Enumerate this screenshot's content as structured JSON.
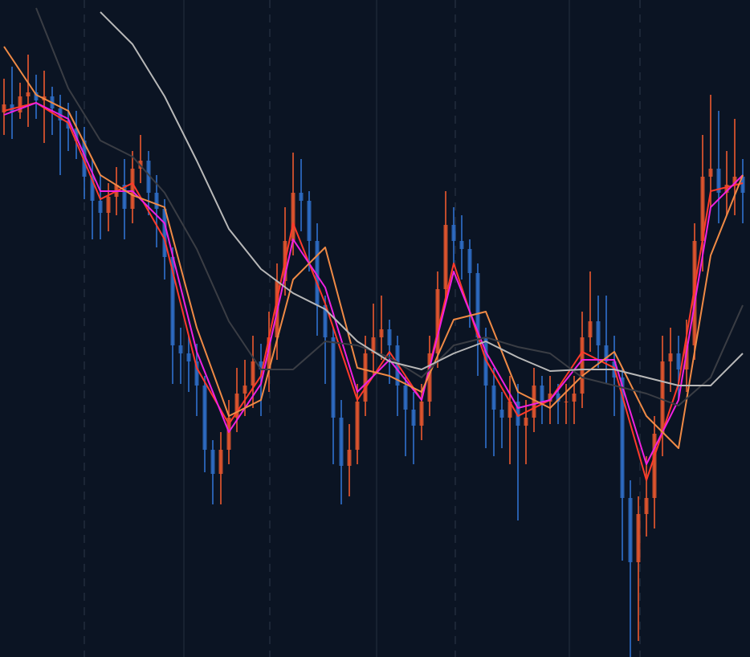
{
  "chart_data": {
    "type": "candlestick",
    "x": [
      1,
      2,
      3,
      4,
      5,
      6,
      7,
      8,
      9,
      10,
      11,
      12,
      13,
      14,
      15,
      16,
      17,
      18,
      19,
      20,
      21,
      22,
      23,
      24,
      25,
      26,
      27,
      28,
      29,
      30,
      31,
      32,
      33,
      34,
      35,
      36,
      37,
      38,
      39,
      40,
      41,
      42,
      43,
      44,
      45,
      46,
      47,
      48,
      49,
      50,
      51,
      52,
      53,
      54,
      55,
      56,
      57,
      58,
      59,
      60,
      61,
      62,
      63,
      64,
      65,
      66,
      67,
      68,
      69,
      70,
      71,
      72,
      73,
      74,
      75,
      76,
      77,
      78,
      79,
      80,
      81,
      82,
      83,
      84,
      85,
      86,
      87,
      88,
      89,
      90,
      91,
      92,
      93
    ],
    "open": [
      678,
      688,
      678,
      698,
      703,
      693,
      698,
      683,
      668,
      658,
      643,
      598,
      568,
      553,
      573,
      588,
      558,
      608,
      618,
      578,
      558,
      498,
      388,
      378,
      368,
      338,
      258,
      228,
      258,
      298,
      328,
      338,
      368,
      358,
      398,
      468,
      518,
      578,
      568,
      518,
      438,
      398,
      298,
      238,
      258,
      318,
      378,
      398,
      408,
      388,
      338,
      308,
      288,
      318,
      378,
      458,
      538,
      518,
      508,
      478,
      398,
      338,
      308,
      298,
      318,
      288,
      298,
      338,
      318,
      328,
      318,
      318,
      328,
      398,
      418,
      388,
      368,
      348,
      198,
      118,
      178,
      198,
      278,
      368,
      378,
      358,
      388,
      518,
      598,
      608,
      578,
      588,
      598
    ],
    "high": [
      720,
      735,
      715,
      750,
      725,
      730,
      710,
      700,
      690,
      680,
      660,
      620,
      600,
      590,
      610,
      620,
      630,
      650,
      630,
      600,
      570,
      510,
      410,
      400,
      390,
      350,
      270,
      280,
      320,
      360,
      370,
      400,
      390,
      430,
      490,
      560,
      628,
      620,
      580,
      540,
      450,
      410,
      320,
      290,
      340,
      400,
      440,
      450,
      420,
      400,
      350,
      330,
      340,
      400,
      480,
      580,
      560,
      550,
      520,
      490,
      410,
      360,
      330,
      350,
      340,
      320,
      360,
      350,
      350,
      340,
      340,
      350,
      430,
      480,
      450,
      450,
      400,
      360,
      220,
      200,
      250,
      300,
      400,
      410,
      400,
      420,
      540,
      650,
      700,
      680,
      630,
      670,
      620
    ],
    "low": [
      650,
      645,
      670,
      660,
      670,
      640,
      650,
      600,
      630,
      620,
      570,
      520,
      520,
      530,
      550,
      520,
      540,
      590,
      550,
      510,
      470,
      340,
      340,
      330,
      300,
      230,
      190,
      190,
      240,
      280,
      300,
      310,
      300,
      330,
      370,
      450,
      500,
      530,
      480,
      400,
      340,
      240,
      190,
      200,
      240,
      300,
      350,
      370,
      340,
      300,
      250,
      240,
      270,
      300,
      360,
      440,
      490,
      470,
      410,
      350,
      260,
      250,
      260,
      240,
      170,
      240,
      280,
      290,
      290,
      290,
      290,
      290,
      310,
      380,
      360,
      340,
      300,
      120,
      0,
      20,
      150,
      160,
      250,
      330,
      320,
      330,
      370,
      480,
      560,
      540,
      550,
      550,
      540
    ],
    "close": [
      688,
      678,
      698,
      703,
      693,
      698,
      683,
      668,
      658,
      643,
      598,
      568,
      553,
      573,
      588,
      558,
      608,
      618,
      578,
      558,
      498,
      388,
      378,
      368,
      338,
      258,
      228,
      258,
      298,
      328,
      338,
      368,
      358,
      398,
      468,
      518,
      578,
      568,
      518,
      438,
      398,
      298,
      238,
      258,
      318,
      378,
      398,
      408,
      388,
      338,
      308,
      288,
      318,
      378,
      458,
      538,
      518,
      508,
      478,
      398,
      338,
      308,
      298,
      318,
      288,
      298,
      338,
      318,
      328,
      318,
      318,
      328,
      398,
      418,
      388,
      368,
      348,
      198,
      118,
      178,
      198,
      278,
      368,
      378,
      358,
      388,
      518,
      598,
      608,
      578,
      588,
      598,
      578
    ],
    "up_color": "#e0552e",
    "down_color": "#2e6cc4",
    "lines": [
      {
        "color": "#ff3a2a",
        "x": [
          1,
          5,
          9,
          13,
          17,
          21,
          25,
          29,
          33,
          37,
          41,
          45,
          49,
          53,
          57,
          61,
          65,
          69,
          73,
          77,
          81,
          85,
          89,
          93
        ],
        "values": [
          680,
          690,
          665,
          570,
          590,
          520,
          360,
          290,
          350,
          540,
          440,
          320,
          380,
          320,
          490,
          370,
          300,
          320,
          380,
          360,
          220,
          340,
          580,
          590
        ]
      },
      {
        "color": "#f020e0",
        "x": [
          1,
          5,
          9,
          13,
          17,
          21,
          25,
          29,
          33,
          37,
          41,
          45,
          49,
          53,
          57,
          61,
          65,
          69,
          73,
          77,
          81,
          85,
          89,
          93
        ],
        "values": [
          675,
          690,
          670,
          580,
          580,
          540,
          380,
          280,
          340,
          520,
          460,
          330,
          370,
          320,
          480,
          380,
          310,
          320,
          370,
          370,
          240,
          320,
          560,
          600
        ]
      },
      {
        "color": "#f08a45",
        "x": [
          1,
          5,
          9,
          13,
          17,
          21,
          25,
          29,
          33,
          37,
          41,
          45,
          49,
          53,
          57,
          61,
          65,
          69,
          73,
          77,
          81,
          85,
          89,
          93
        ],
        "values": [
          760,
          700,
          680,
          600,
          575,
          560,
          410,
          300,
          320,
          470,
          510,
          360,
          350,
          330,
          420,
          430,
          330,
          310,
          350,
          380,
          300,
          260,
          500,
          600
        ]
      },
      {
        "color": "#3a3d44",
        "x": [
          1,
          5,
          9,
          13,
          17,
          21,
          25,
          29,
          33,
          37,
          41,
          45,
          49,
          53,
          57,
          61,
          65,
          69,
          73,
          77,
          81,
          85,
          89,
          93
        ],
        "values": [
          null,
          808,
          708,
          643,
          623,
          578,
          508,
          418,
          358,
          358,
          393,
          388,
          373,
          348,
          388,
          398,
          386,
          378,
          348,
          338,
          328,
          313,
          348,
          438
        ]
      },
      {
        "color": "#b8b8b8",
        "x": [
          1,
          5,
          9,
          13,
          17,
          21,
          25,
          29,
          33,
          37,
          41,
          45,
          49,
          53,
          57,
          61,
          65,
          69,
          73,
          77,
          81,
          85,
          89,
          93
        ],
        "values": [
          null,
          null,
          null,
          803,
          763,
          698,
          618,
          533,
          483,
          453,
          433,
          393,
          368,
          358,
          378,
          393,
          373,
          356,
          358,
          358,
          348,
          338,
          338,
          378
        ]
      }
    ],
    "xlim": [
      0.5,
      93.9
    ],
    "ylim": [
      0,
      818
    ]
  }
}
